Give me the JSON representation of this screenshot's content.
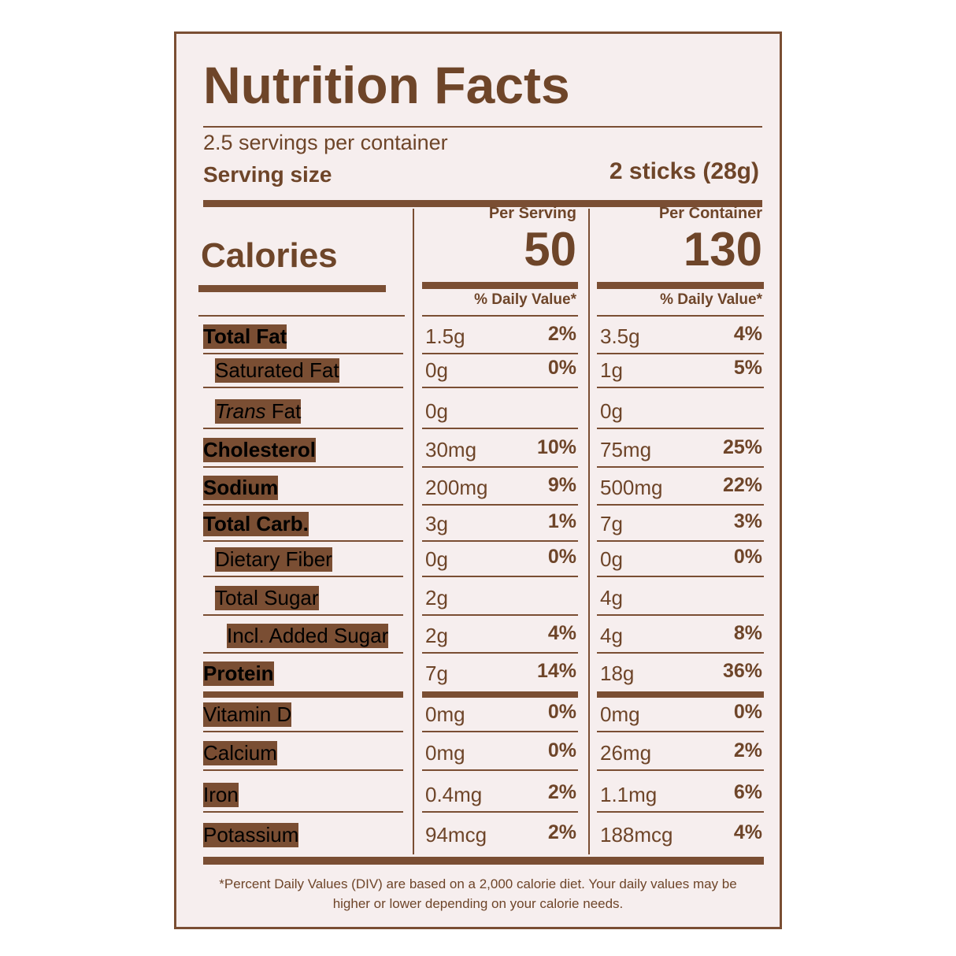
{
  "title": "Nutrition Facts",
  "servings": "2.5 servings per container",
  "serving_size": {
    "label": "Serving size",
    "value": "2 sticks (28g)"
  },
  "calories_label": "Calories",
  "columns": [
    {
      "header": "Per Serving",
      "calories": "50",
      "dv_header": "% Daily Value*"
    },
    {
      "header": "Per Container",
      "calories": "130",
      "dv_header": "% Daily Value*"
    }
  ],
  "rows": [
    {
      "label": "Total Fat",
      "bold": true,
      "indent": 0,
      "values": [
        [
          "1.5g",
          "2%"
        ],
        [
          "3.5g",
          "4%"
        ]
      ]
    },
    {
      "label": "Saturated Fat",
      "bold": false,
      "indent": 1,
      "values": [
        [
          "0g",
          "0%"
        ],
        [
          "1g",
          "5%"
        ]
      ]
    },
    {
      "italic": "Trans",
      "label": "Fat",
      "bold": false,
      "indent": 1,
      "values": [
        [
          "0g",
          null
        ],
        [
          "0g",
          null
        ]
      ]
    },
    {
      "label": "Cholesterol",
      "bold": true,
      "indent": 0,
      "values": [
        [
          "30mg",
          "10%"
        ],
        [
          "75mg",
          "25%"
        ]
      ]
    },
    {
      "label": "Sodium",
      "bold": true,
      "indent": 0,
      "values": [
        [
          "200mg",
          "9%"
        ],
        [
          "500mg",
          "22%"
        ]
      ]
    },
    {
      "label": "Total Carb.",
      "bold": true,
      "indent": 0,
      "values": [
        [
          "3g",
          "1%"
        ],
        [
          "7g",
          "3%"
        ]
      ]
    },
    {
      "label": "Dietary Fiber",
      "bold": false,
      "indent": 1,
      "values": [
        [
          "0g",
          "0%"
        ],
        [
          "0g",
          "0%"
        ]
      ]
    },
    {
      "label": "Total Sugar",
      "bold": false,
      "indent": 1,
      "values": [
        [
          "2g",
          null
        ],
        [
          "4g",
          null
        ]
      ]
    },
    {
      "label": "Incl. Added Sugar",
      "bold": false,
      "indent": 2,
      "values": [
        [
          "2g",
          "4%"
        ],
        [
          "4g",
          "8%"
        ]
      ]
    },
    {
      "label": "Protein",
      "bold": true,
      "indent": 0,
      "values": [
        [
          "7g",
          "14%"
        ],
        [
          "18g",
          "36%"
        ]
      ]
    },
    {
      "label": "Vitamin D",
      "bold": false,
      "indent": 0,
      "values": [
        [
          "0mg",
          "0%"
        ],
        [
          "0mg",
          "0%"
        ]
      ]
    },
    {
      "label": "Calcium",
      "bold": false,
      "indent": 0,
      "values": [
        [
          "0mg",
          "0%"
        ],
        [
          "26mg",
          "2%"
        ]
      ]
    },
    {
      "label": "Iron",
      "bold": false,
      "indent": 0,
      "values": [
        [
          "0.4mg",
          "2%"
        ],
        [
          "1.1mg",
          "6%"
        ]
      ]
    },
    {
      "label": "Potassium",
      "bold": false,
      "indent": 0,
      "values": [
        [
          "94mcg",
          "2%"
        ],
        [
          "188mcg",
          "4%"
        ]
      ]
    }
  ],
  "footnote": "*Percent Daily Values (DIV) are based on a 2,000 calorie diet. Your daily values may be higher or lower depending on your calorie needs."
}
